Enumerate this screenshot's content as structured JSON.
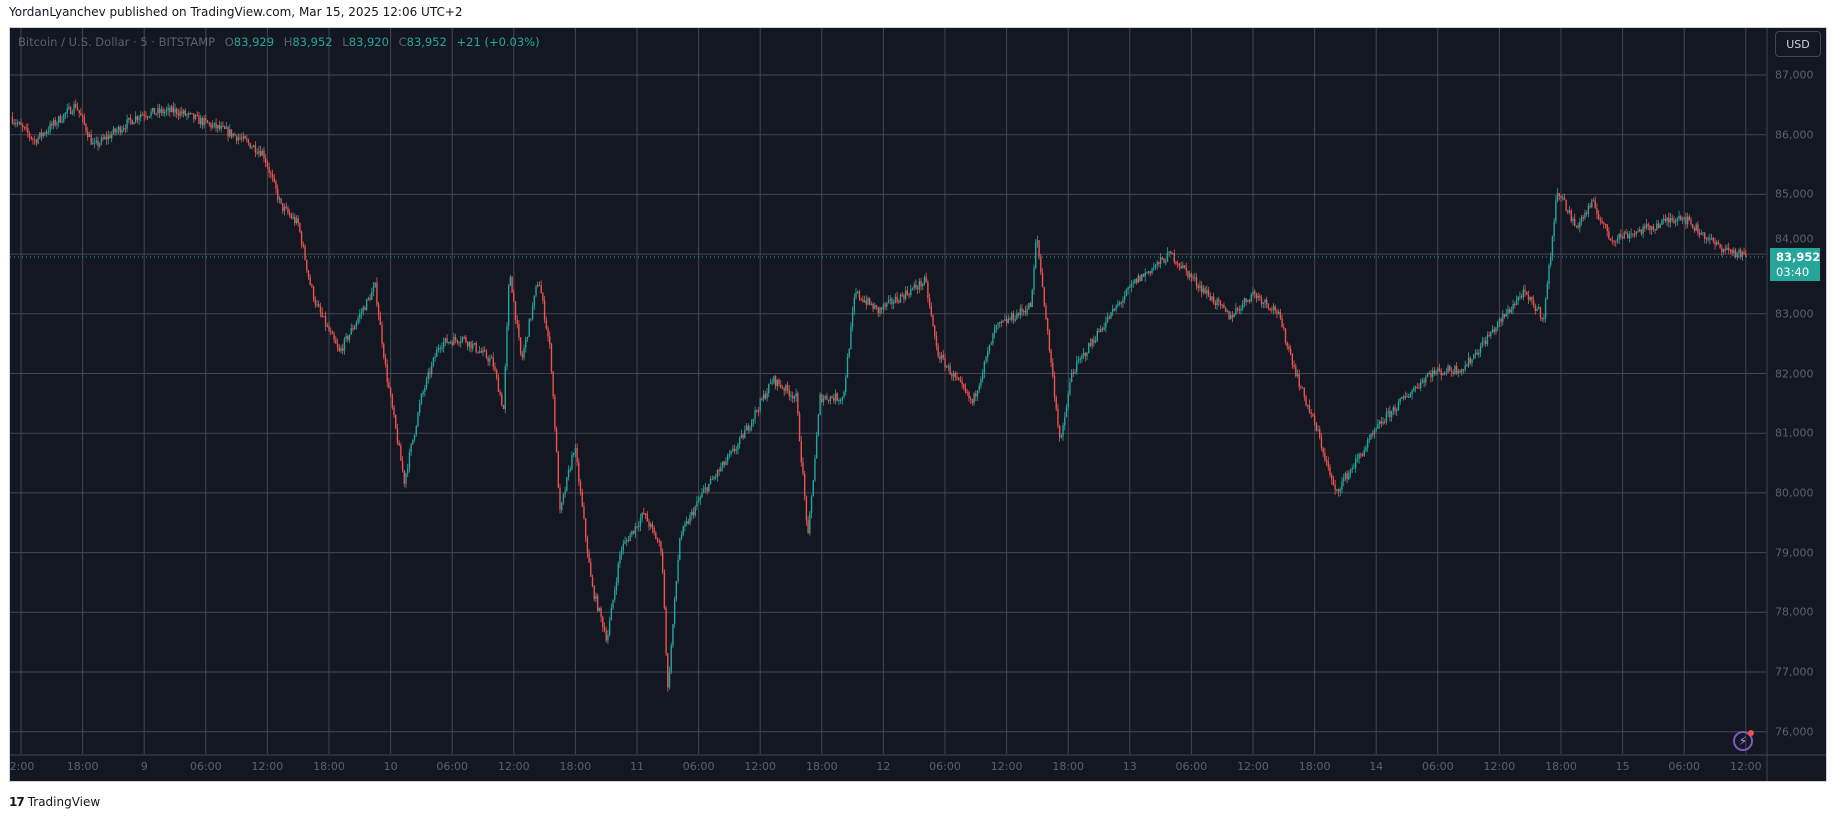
{
  "header": {
    "published": "YordanLyanchev published on TradingView.com, Mar 15, 2025 12:06 UTC+2"
  },
  "legend": {
    "symbol": "Bitcoin / U.S. Dollar · 5 · BITSTAMP",
    "o_label": "O",
    "o": "83,929",
    "h_label": "H",
    "h": "83,952",
    "l_label": "L",
    "l": "83,920",
    "c_label": "C",
    "c": "83,952",
    "change": "+21 (+0.03%)"
  },
  "currency_button": "USD",
  "last_price": {
    "price": "83,952",
    "countdown": "03:40"
  },
  "footer": {
    "logo": "17",
    "brand": "TradingView"
  },
  "colors": {
    "background": "#131722",
    "grid": "#434651",
    "up": "#26a69a",
    "down": "#ef5350",
    "price_label": "#26a69a"
  },
  "icons": {
    "alert": "lightning-bolt-icon"
  },
  "chart_data": {
    "type": "candlestick",
    "interval": "5",
    "grid": true,
    "ylim": [
      75500,
      87300
    ],
    "y_ticks": [
      "87,000",
      "86,000",
      "85,000",
      "84,000",
      "83,000",
      "82,000",
      "81,000",
      "80,000",
      "79,000",
      "78,000",
      "77,000",
      "76,000"
    ],
    "y_tick_values": [
      87000,
      86000,
      85000,
      84000,
      83000,
      82000,
      81000,
      80000,
      79000,
      78000,
      77000,
      76000
    ],
    "x_ticks": [
      "2:00",
      "18:00",
      "9",
      "06:00",
      "12:00",
      "18:00",
      "10",
      "06:00",
      "12:00",
      "18:00",
      "11",
      "06:00",
      "12:00",
      "18:00",
      "12",
      "06:00",
      "12:00",
      "18:00",
      "13",
      "06:00",
      "12:00",
      "18:00",
      "14",
      "06:00",
      "12:00",
      "18:00",
      "15",
      "06:00",
      "12:00"
    ],
    "last_close": 83952,
    "price_path": [
      [
        "03-08 11:00",
        86300
      ],
      [
        "03-08 13:20",
        85900
      ],
      [
        "03-08 17:20",
        86500
      ],
      [
        "03-08 19:05",
        85800
      ],
      [
        "03-08 23:40",
        86350
      ],
      [
        "03-09 03:05",
        86400
      ],
      [
        "03-09 08:45",
        86000
      ],
      [
        "03-09 11:35",
        85700
      ],
      [
        "03-09 13:20",
        84800
      ],
      [
        "03-09 15:00",
        84500
      ],
      [
        "03-09 16:10",
        83500
      ],
      [
        "03-09 16:45",
        83150
      ],
      [
        "03-09 19:00",
        82350
      ],
      [
        "03-09 22:30",
        83450
      ],
      [
        "03-09 23:35",
        82000
      ],
      [
        "03-10 01:20",
        80200
      ],
      [
        "03-10 03:00",
        81600
      ],
      [
        "03-10 04:45",
        82500
      ],
      [
        "03-10 07:00",
        82600
      ],
      [
        "03-10 09:55",
        82200
      ],
      [
        "03-10 11:00",
        81400
      ],
      [
        "03-10 11:35",
        83750
      ],
      [
        "03-10 12:45",
        82200
      ],
      [
        "03-10 14:25",
        83600
      ],
      [
        "03-10 15:35",
        82350
      ],
      [
        "03-10 16:30",
        79650
      ],
      [
        "03-10 17:55",
        80800
      ],
      [
        "03-10 19:35",
        78450
      ],
      [
        "03-10 21:05",
        77550
      ],
      [
        "03-10 22:25",
        79050
      ],
      [
        "03-11 00:40",
        79650
      ],
      [
        "03-11 02:25",
        79050
      ],
      [
        "03-11 03:00",
        76700
      ],
      [
        "03-11 04:10",
        79250
      ],
      [
        "03-11 06:25",
        80000
      ],
      [
        "03-11 09:50",
        80800
      ],
      [
        "03-11 13:15",
        81900
      ],
      [
        "03-11 15:30",
        81600
      ],
      [
        "03-11 16:40",
        79250
      ],
      [
        "03-11 17:50",
        81600
      ],
      [
        "03-11 20:05",
        81600
      ],
      [
        "03-11 21:15",
        83350
      ],
      [
        "03-11 23:30",
        83050
      ],
      [
        "03-12 04:05",
        83550
      ],
      [
        "03-12 05:15",
        82350
      ],
      [
        "03-12 08:40",
        81500
      ],
      [
        "03-12 10:55",
        82750
      ],
      [
        "03-12 14:25",
        83150
      ],
      [
        "03-12 14:55",
        84350
      ],
      [
        "03-12 16:05",
        82550
      ],
      [
        "03-12 17:15",
        80800
      ],
      [
        "03-12 18:20",
        82000
      ],
      [
        "03-12 21:10",
        82750
      ],
      [
        "03-13 00:35",
        83550
      ],
      [
        "03-13 04:00",
        84000
      ],
      [
        "03-13 06:20",
        83550
      ],
      [
        "03-13 09:45",
        82950
      ],
      [
        "03-13 12:00",
        83350
      ],
      [
        "03-13 14:20",
        83050
      ],
      [
        "03-13 16:35",
        81800
      ],
      [
        "03-13 18:20",
        81000
      ],
      [
        "03-13 20:00",
        80000
      ],
      [
        "03-13 22:20",
        80600
      ],
      [
        "03-14 00:35",
        81200
      ],
      [
        "03-14 02:50",
        81600
      ],
      [
        "03-14 05:10",
        82000
      ],
      [
        "03-14 08:35",
        82100
      ],
      [
        "03-14 10:50",
        82600
      ],
      [
        "03-14 14:15",
        83350
      ],
      [
        "03-14 16:20",
        82950
      ],
      [
        "03-14 17:40",
        85100
      ],
      [
        "03-14 19:25",
        84450
      ],
      [
        "03-14 21:05",
        84850
      ],
      [
        "03-14 22:50",
        84250
      ],
      [
        "03-15 02:50",
        84450
      ],
      [
        "03-15 05:40",
        84650
      ],
      [
        "03-15 09:05",
        84150
      ],
      [
        "03-15 12:00",
        83952
      ]
    ]
  }
}
